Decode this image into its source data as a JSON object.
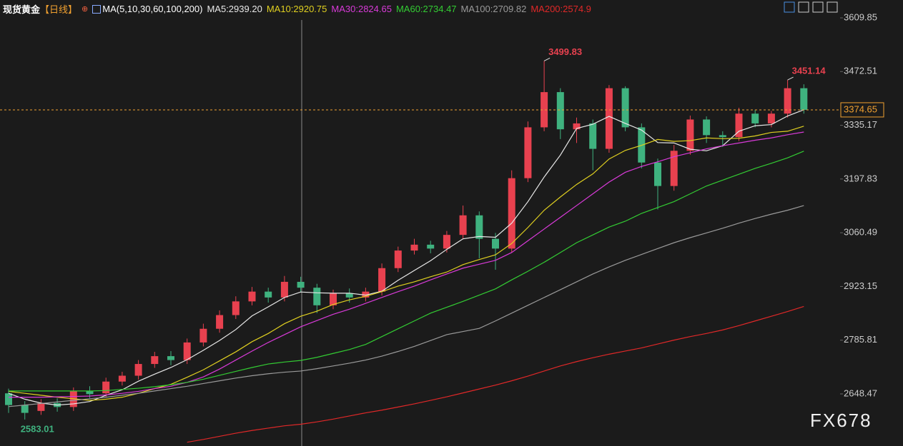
{
  "header": {
    "symbol": "现货黄金",
    "period": "【日线】",
    "indicator": "MA(5,10,30,60,100,200)"
  },
  "chart_data": {
    "type": "candlestick",
    "open": [
      2650,
      2620,
      2605,
      2625,
      2615,
      2655,
      2650,
      2680,
      2695,
      2725,
      2745,
      2735,
      2780,
      2815,
      2850,
      2885,
      2910,
      2895,
      2935,
      2920,
      2875,
      2905,
      2895,
      2910,
      2970,
      3015,
      3030,
      3020,
      3055,
      3105,
      3045,
      3020,
      3200,
      3330,
      3420,
      3325,
      3340,
      3275,
      3430,
      3330,
      3240,
      3180,
      3270,
      3350,
      3310,
      3305,
      3365,
      3340,
      3365,
      3430
    ],
    "high": [
      2662,
      2630,
      2635,
      2637,
      2665,
      2668,
      2690,
      2705,
      2735,
      2756,
      2758,
      2790,
      2828,
      2862,
      2898,
      2922,
      2920,
      2950,
      2948,
      2930,
      2915,
      2918,
      2920,
      2982,
      3025,
      3045,
      3040,
      3065,
      3130,
      3115,
      3060,
      3220,
      3345,
      3499.83,
      3430,
      3355,
      3350,
      3438,
      3435,
      3340,
      3250,
      3285,
      3360,
      3358,
      3320,
      3380,
      3375,
      3372,
      3451.14,
      3440
    ],
    "low": [
      2600,
      2583.01,
      2595,
      2603,
      2605,
      2638,
      2640,
      2670,
      2685,
      2715,
      2722,
      2725,
      2770,
      2805,
      2840,
      2875,
      2882,
      2885,
      2908,
      2855,
      2865,
      2882,
      2885,
      2900,
      2960,
      3005,
      3008,
      3010,
      3045,
      2995,
      2966,
      3010,
      3190,
      3320,
      3300,
      3290,
      3220,
      3265,
      3320,
      3225,
      3120,
      3168,
      3260,
      3290,
      3280,
      3295,
      3330,
      3330,
      3355,
      3365
    ],
    "close": [
      2620,
      2600,
      2625,
      2615,
      2655,
      2648,
      2680,
      2695,
      2725,
      2745,
      2735,
      2780,
      2815,
      2850,
      2885,
      2910,
      2895,
      2935,
      2920,
      2875,
      2905,
      2895,
      2910,
      2970,
      3015,
      3030,
      3020,
      3055,
      3105,
      3045,
      3020,
      3200,
      3330,
      3420,
      3325,
      3340,
      3275,
      3430,
      3330,
      3240,
      3180,
      3270,
      3350,
      3310,
      3305,
      3365,
      3340,
      3365,
      3430,
      3374.65
    ],
    "up_color": "#e8414f",
    "down_color": "#3fb27f",
    "series": [
      {
        "name": "MA5:2939.20",
        "color": "#e8e8e8",
        "values": [
          2650,
          2635,
          2625,
          2620,
          2623,
          2629,
          2645,
          2659,
          2681,
          2699,
          2716,
          2736,
          2760,
          2785,
          2813,
          2848,
          2871,
          2895,
          2909,
          2907,
          2906,
          2906,
          2901,
          2911,
          2939,
          2964,
          2989,
          3018,
          3045,
          3051,
          3049,
          3085,
          3140,
          3203,
          3259,
          3327,
          3338,
          3358,
          3340,
          3323,
          3291,
          3290,
          3274,
          3270,
          3283,
          3320,
          3334,
          3337,
          3359,
          3375
        ]
      },
      {
        "name": "MA10:2920.75",
        "color": "#e0d020",
        "values": [
          2655,
          2650,
          2645,
          2640,
          2636,
          2632,
          2635,
          2640,
          2650,
          2662,
          2673,
          2691,
          2710,
          2733,
          2756,
          2782,
          2803,
          2828,
          2847,
          2860,
          2877,
          2889,
          2898,
          2910,
          2924,
          2935,
          2948,
          2960,
          2979,
          2992,
          3004,
          3033,
          3074,
          3118,
          3152,
          3184,
          3211,
          3249,
          3271,
          3284,
          3299,
          3294,
          3296,
          3303,
          3301,
          3302,
          3308,
          3317,
          3320,
          3333
        ]
      },
      {
        "name": "MA30:2824.65",
        "color": "#d93ad9",
        "values": [
          2640,
          2640,
          2640,
          2641,
          2642,
          2643,
          2646,
          2650,
          2655,
          2662,
          2668,
          2678,
          2692,
          2712,
          2735,
          2758,
          2780,
          2800,
          2820,
          2836,
          2852,
          2865,
          2880,
          2895,
          2910,
          2924,
          2940,
          2955,
          2970,
          2980,
          2990,
          3010,
          3040,
          3070,
          3100,
          3130,
          3160,
          3190,
          3215,
          3230,
          3242,
          3255,
          3265,
          3275,
          3283,
          3290,
          3297,
          3303,
          3311,
          3318
        ]
      },
      {
        "name": "MA60:2734.47",
        "color": "#33cc33",
        "values": [
          2656,
          2656,
          2656,
          2656,
          2656,
          2656,
          2657,
          2660,
          2663,
          2667,
          2672,
          2678,
          2686,
          2696,
          2706,
          2716,
          2725,
          2730,
          2734,
          2742,
          2752,
          2762,
          2775,
          2795,
          2815,
          2835,
          2855,
          2870,
          2885,
          2901,
          2917,
          2940,
          2962,
          2985,
          3010,
          3035,
          3055,
          3075,
          3090,
          3110,
          3125,
          3140,
          3160,
          3180,
          3195,
          3210,
          3225,
          3238,
          3252,
          3269
        ]
      },
      {
        "name": "MA100:2709.82",
        "color": "#9a9a9a",
        "values": [
          2616,
          2620,
          2624,
          2628,
          2632,
          2636,
          2640,
          2645,
          2650,
          2656,
          2662,
          2668,
          2675,
          2682,
          2689,
          2695,
          2700,
          2704,
          2707,
          2713,
          2720,
          2727,
          2735,
          2745,
          2757,
          2770,
          2785,
          2800,
          2808,
          2816,
          2835,
          2855,
          2875,
          2895,
          2915,
          2935,
          2955,
          2973,
          2990,
          3005,
          3020,
          3035,
          3048,
          3060,
          3072,
          3085,
          3097,
          3108,
          3118,
          3130
        ]
      },
      {
        "name": "MA200:2574.9",
        "color": "#e02828",
        "values": [
          null,
          null,
          null,
          null,
          null,
          null,
          null,
          null,
          null,
          null,
          null,
          2525,
          2532,
          2540,
          2548,
          2555,
          2561,
          2567,
          2571,
          2577,
          2584,
          2592,
          2600,
          2607,
          2615,
          2623,
          2632,
          2641,
          2651,
          2661,
          2671,
          2682,
          2694,
          2707,
          2720,
          2731,
          2741,
          2750,
          2758,
          2766,
          2776,
          2786,
          2795,
          2803,
          2812,
          2823,
          2835,
          2847,
          2859,
          2872
        ]
      }
    ],
    "ylim": [
      2515.3,
      3655.5
    ],
    "yticks": [
      3609.85,
      3472.51,
      3335.17,
      3197.83,
      3060.49,
      2923.15,
      2785.81,
      2648.47
    ],
    "price_line_color": "#f0a030",
    "watermark": "FX678"
  }
}
